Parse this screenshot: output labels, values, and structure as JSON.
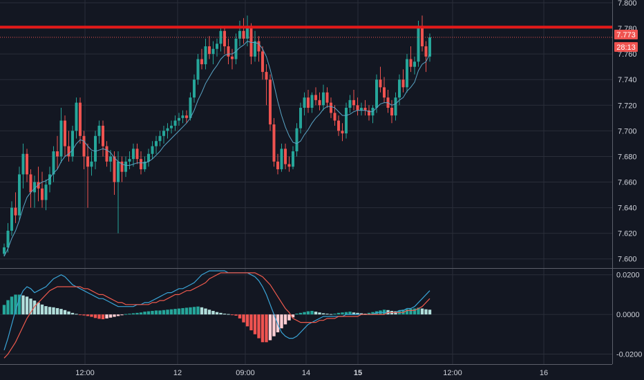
{
  "colors": {
    "background": "#131722",
    "grid": "#2a2e39",
    "axis_text": "#d1d4dc",
    "up": "#26a69a",
    "down": "#ef5350",
    "ma_line": "#5aa6c7",
    "resistance": "#e31919",
    "price_tag": "#ef5350",
    "macd_line": "#3aa5d8",
    "signal_line": "#ef5a4d",
    "hist_up_strong": "#26a69a",
    "hist_up_weak": "#b2dfdb",
    "hist_down_strong": "#ef5350",
    "hist_down_weak": "#ffcdd2"
  },
  "price_tags": {
    "last_price": "7.773",
    "countdown": "28:13"
  },
  "chart_data": [
    {
      "type": "candlestick",
      "y_ticks": [
        "7.800",
        "7.780",
        "7.760",
        "7.740",
        "7.720",
        "7.700",
        "7.680",
        "7.660",
        "7.640",
        "7.620",
        "7.600"
      ],
      "ylim": [
        7.595,
        7.8
      ],
      "x_ticks": [
        "12:00",
        "12",
        "09:00",
        "14",
        "15",
        "12:00",
        "16"
      ],
      "horizontal_line": 7.781,
      "last_price": 7.773,
      "candles": [
        [
          7.604,
          7.612,
          7.602,
          7.609
        ],
        [
          7.609,
          7.628,
          7.605,
          7.622
        ],
        [
          7.622,
          7.645,
          7.618,
          7.64
        ],
        [
          7.64,
          7.652,
          7.628,
          7.634
        ],
        [
          7.634,
          7.672,
          7.63,
          7.666
        ],
        [
          7.666,
          7.69,
          7.655,
          7.682
        ],
        [
          7.682,
          7.686,
          7.66,
          7.666
        ],
        [
          7.666,
          7.67,
          7.64,
          7.652
        ],
        [
          7.652,
          7.665,
          7.64,
          7.66
        ],
        [
          7.66,
          7.672,
          7.645,
          7.655
        ],
        [
          7.655,
          7.668,
          7.64,
          7.646
        ],
        [
          7.646,
          7.662,
          7.638,
          7.658
        ],
        [
          7.658,
          7.672,
          7.652,
          7.666
        ],
        [
          7.666,
          7.688,
          7.66,
          7.684
        ],
        [
          7.684,
          7.696,
          7.67,
          7.68
        ],
        [
          7.68,
          7.718,
          7.675,
          7.708
        ],
        [
          7.708,
          7.712,
          7.68,
          7.688
        ],
        [
          7.688,
          7.7,
          7.676,
          7.68
        ],
        [
          7.68,
          7.704,
          7.676,
          7.7
        ],
        [
          7.7,
          7.726,
          7.694,
          7.722
        ],
        [
          7.722,
          7.726,
          7.69,
          7.696
        ],
        [
          7.696,
          7.7,
          7.67,
          7.68
        ],
        [
          7.68,
          7.69,
          7.64,
          7.672
        ],
        [
          7.672,
          7.684,
          7.665,
          7.676
        ],
        [
          7.676,
          7.7,
          7.67,
          7.696
        ],
        [
          7.696,
          7.708,
          7.69,
          7.704
        ],
        [
          7.704,
          7.708,
          7.68,
          7.688
        ],
        [
          7.688,
          7.692,
          7.672,
          7.676
        ],
        [
          7.676,
          7.685,
          7.668,
          7.68
        ],
        [
          7.68,
          7.684,
          7.65,
          7.66
        ],
        [
          7.66,
          7.684,
          7.62,
          7.676
        ],
        [
          7.676,
          7.68,
          7.66,
          7.668
        ],
        [
          7.668,
          7.68,
          7.664,
          7.676
        ],
        [
          7.676,
          7.684,
          7.67,
          7.678
        ],
        [
          7.678,
          7.69,
          7.672,
          7.686
        ],
        [
          7.686,
          7.69,
          7.674,
          7.678
        ],
        [
          7.678,
          7.684,
          7.666,
          7.67
        ],
        [
          7.67,
          7.68,
          7.668,
          7.676
        ],
        [
          7.676,
          7.686,
          7.672,
          7.682
        ],
        [
          7.682,
          7.692,
          7.678,
          7.688
        ],
        [
          7.688,
          7.696,
          7.682,
          7.692
        ],
        [
          7.692,
          7.7,
          7.688,
          7.696
        ],
        [
          7.696,
          7.704,
          7.69,
          7.7
        ],
        [
          7.7,
          7.706,
          7.694,
          7.702
        ],
        [
          7.702,
          7.708,
          7.698,
          7.704
        ],
        [
          7.704,
          7.712,
          7.7,
          7.708
        ],
        [
          7.708,
          7.714,
          7.704,
          7.71
        ],
        [
          7.71,
          7.716,
          7.706,
          7.712
        ],
        [
          7.712,
          7.716,
          7.706,
          7.71
        ],
        [
          7.71,
          7.73,
          7.708,
          7.726
        ],
        [
          7.726,
          7.744,
          7.722,
          7.74
        ],
        [
          7.74,
          7.76,
          7.736,
          7.756
        ],
        [
          7.756,
          7.764,
          7.748,
          7.752
        ],
        [
          7.752,
          7.772,
          7.748,
          7.766
        ],
        [
          7.766,
          7.774,
          7.756,
          7.76
        ],
        [
          7.76,
          7.77,
          7.752,
          7.764
        ],
        [
          7.764,
          7.772,
          7.758,
          7.768
        ],
        [
          7.768,
          7.782,
          7.762,
          7.778
        ],
        [
          7.778,
          7.782,
          7.76,
          7.766
        ],
        [
          7.766,
          7.772,
          7.752,
          7.758
        ],
        [
          7.758,
          7.764,
          7.748,
          7.756
        ],
        [
          7.756,
          7.776,
          7.752,
          7.772
        ],
        [
          7.772,
          7.786,
          7.766,
          7.778
        ],
        [
          7.778,
          7.788,
          7.768,
          7.772
        ],
        [
          7.772,
          7.79,
          7.766,
          7.782
        ],
        [
          7.782,
          7.784,
          7.752,
          7.758
        ],
        [
          7.758,
          7.778,
          7.754,
          7.77
        ],
        [
          7.77,
          7.774,
          7.754,
          7.762
        ],
        [
          7.762,
          7.766,
          7.74,
          7.746
        ],
        [
          7.746,
          7.752,
          7.72,
          7.74
        ],
        [
          7.74,
          7.744,
          7.7,
          7.705
        ],
        [
          7.705,
          7.71,
          7.672,
          7.676
        ],
        [
          7.676,
          7.682,
          7.666,
          7.67
        ],
        [
          7.67,
          7.69,
          7.668,
          7.686
        ],
        [
          7.686,
          7.69,
          7.67,
          7.674
        ],
        [
          7.674,
          7.68,
          7.668,
          7.672
        ],
        [
          7.672,
          7.688,
          7.67,
          7.684
        ],
        [
          7.684,
          7.706,
          7.68,
          7.702
        ],
        [
          7.702,
          7.722,
          7.698,
          7.718
        ],
        [
          7.718,
          7.73,
          7.712,
          7.726
        ],
        [
          7.726,
          7.732,
          7.714,
          7.718
        ],
        [
          7.718,
          7.73,
          7.714,
          7.728
        ],
        [
          7.728,
          7.734,
          7.72,
          7.724
        ],
        [
          7.724,
          7.73,
          7.716,
          7.72
        ],
        [
          7.72,
          7.736,
          7.716,
          7.73
        ],
        [
          7.73,
          7.734,
          7.718,
          7.722
        ],
        [
          7.722,
          7.726,
          7.71,
          7.714
        ],
        [
          7.714,
          7.72,
          7.704,
          7.708
        ],
        [
          7.708,
          7.712,
          7.696,
          7.7
        ],
        [
          7.7,
          7.706,
          7.692,
          7.698
        ],
        [
          7.698,
          7.722,
          7.694,
          7.718
        ],
        [
          7.718,
          7.728,
          7.714,
          7.724
        ],
        [
          7.724,
          7.732,
          7.716,
          7.72
        ],
        [
          7.72,
          7.726,
          7.712,
          7.716
        ],
        [
          7.716,
          7.722,
          7.712,
          7.718
        ],
        [
          7.718,
          7.724,
          7.712,
          7.716
        ],
        [
          7.716,
          7.72,
          7.708,
          7.712
        ],
        [
          7.712,
          7.72,
          7.706,
          7.718
        ],
        [
          7.718,
          7.744,
          7.714,
          7.74
        ],
        [
          7.74,
          7.75,
          7.73,
          7.734
        ],
        [
          7.734,
          7.742,
          7.722,
          7.726
        ],
        [
          7.726,
          7.732,
          7.714,
          7.718
        ],
        [
          7.718,
          7.724,
          7.706,
          7.712
        ],
        [
          7.712,
          7.73,
          7.708,
          7.726
        ],
        [
          7.726,
          7.744,
          7.72,
          7.74
        ],
        [
          7.74,
          7.748,
          7.73,
          7.734
        ],
        [
          7.734,
          7.76,
          7.73,
          7.756
        ],
        [
          7.756,
          7.766,
          7.746,
          7.75
        ],
        [
          7.75,
          7.758,
          7.744,
          7.754
        ],
        [
          7.754,
          7.786,
          7.75,
          7.782
        ],
        [
          7.782,
          7.79,
          7.762,
          7.766
        ],
        [
          7.766,
          7.77,
          7.746,
          7.758
        ],
        [
          7.758,
          7.776,
          7.754,
          7.773
        ]
      ],
      "ma": [
        7.602,
        7.608,
        7.616,
        7.622,
        7.63,
        7.64,
        7.648,
        7.652,
        7.655,
        7.658,
        7.66,
        7.661,
        7.663,
        7.667,
        7.67,
        7.676,
        7.68,
        7.682,
        7.685,
        7.69,
        7.693,
        7.692,
        7.688,
        7.685,
        7.684,
        7.685,
        7.686,
        7.685,
        7.683,
        7.679,
        7.676,
        7.674,
        7.673,
        7.673,
        7.674,
        7.675,
        7.675,
        7.675,
        7.676,
        7.678,
        7.681,
        7.684,
        7.688,
        7.691,
        7.694,
        7.697,
        7.7,
        7.703,
        7.706,
        7.71,
        7.716,
        7.724,
        7.73,
        7.737,
        7.742,
        7.747,
        7.751,
        7.756,
        7.759,
        7.76,
        7.76,
        7.762,
        7.765,
        7.767,
        7.77,
        7.769,
        7.769,
        7.768,
        7.764,
        7.758,
        7.748,
        7.736,
        7.723,
        7.712,
        7.703,
        7.696,
        7.691,
        7.69,
        7.692,
        7.697,
        7.701,
        7.706,
        7.71,
        7.713,
        7.717,
        7.719,
        7.719,
        7.718,
        7.715,
        7.712,
        7.712,
        7.713,
        7.715,
        7.716,
        7.716,
        7.716,
        7.715,
        7.715,
        7.718,
        7.721,
        7.722,
        7.722,
        7.72,
        7.721,
        7.724,
        7.726,
        7.731,
        7.734,
        7.738,
        7.747,
        7.752,
        7.754,
        7.76
      ]
    },
    {
      "type": "macd",
      "y_ticks": [
        "0.0200",
        "0.0000",
        "-0.0200"
      ],
      "ylim": [
        -0.024,
        0.022
      ],
      "macd": [
        -0.018,
        -0.012,
        -0.005,
        0.002,
        0.008,
        0.012,
        0.014,
        0.013,
        0.011,
        0.012,
        0.013,
        0.014,
        0.016,
        0.018,
        0.019,
        0.02,
        0.019,
        0.017,
        0.015,
        0.014,
        0.013,
        0.012,
        0.011,
        0.01,
        0.009,
        0.008,
        0.008,
        0.007,
        0.006,
        0.005,
        0.004,
        0.004,
        0.004,
        0.004,
        0.004,
        0.005,
        0.005,
        0.006,
        0.006,
        0.007,
        0.008,
        0.009,
        0.01,
        0.011,
        0.011,
        0.012,
        0.013,
        0.013,
        0.014,
        0.015,
        0.016,
        0.018,
        0.02,
        0.021,
        0.022,
        0.022,
        0.022,
        0.022,
        0.022,
        0.021,
        0.021,
        0.021,
        0.021,
        0.021,
        0.021,
        0.02,
        0.019,
        0.017,
        0.014,
        0.01,
        0.005,
        0.0,
        -0.005,
        -0.009,
        -0.011,
        -0.012,
        -0.012,
        -0.011,
        -0.009,
        -0.007,
        -0.005,
        -0.004,
        -0.003,
        -0.002,
        -0.001,
        -0.001,
        -0.001,
        -0.001,
        -0.001,
        -0.001,
        0.0,
        0.0,
        0.0,
        0.0,
        0.0,
        0.0,
        0.0,
        0.0,
        0.001,
        0.001,
        0.001,
        0.001,
        0.001,
        0.001,
        0.002,
        0.002,
        0.003,
        0.003,
        0.004,
        0.006,
        0.008,
        0.01,
        0.012
      ],
      "signal": [
        -0.022,
        -0.02,
        -0.017,
        -0.014,
        -0.01,
        -0.006,
        -0.002,
        0.001,
        0.004,
        0.006,
        0.008,
        0.01,
        0.012,
        0.013,
        0.014,
        0.014,
        0.014,
        0.014,
        0.014,
        0.014,
        0.014,
        0.013,
        0.013,
        0.012,
        0.011,
        0.01,
        0.01,
        0.009,
        0.008,
        0.007,
        0.006,
        0.006,
        0.005,
        0.005,
        0.005,
        0.005,
        0.005,
        0.005,
        0.005,
        0.006,
        0.006,
        0.007,
        0.007,
        0.008,
        0.009,
        0.01,
        0.01,
        0.011,
        0.012,
        0.012,
        0.013,
        0.014,
        0.015,
        0.016,
        0.018,
        0.019,
        0.02,
        0.021,
        0.021,
        0.021,
        0.021,
        0.021,
        0.021,
        0.021,
        0.021,
        0.021,
        0.021,
        0.02,
        0.019,
        0.017,
        0.015,
        0.012,
        0.009,
        0.006,
        0.003,
        0.001,
        -0.002,
        -0.003,
        -0.004,
        -0.004,
        -0.004,
        -0.004,
        -0.004,
        -0.003,
        -0.003,
        -0.002,
        -0.002,
        -0.002,
        -0.001,
        -0.001,
        -0.001,
        -0.001,
        -0.001,
        -0.001,
        0.0,
        0.0,
        0.0,
        0.0,
        0.0,
        0.0,
        0.0,
        0.001,
        0.001,
        0.001,
        0.001,
        0.001,
        0.002,
        0.002,
        0.002,
        0.003,
        0.004,
        0.006,
        0.008
      ],
      "histogram": [
        0.0048,
        0.0072,
        0.009,
        0.01,
        0.01,
        0.0096,
        0.009,
        0.008,
        0.007,
        0.006,
        0.005,
        0.0042,
        0.0038,
        0.0036,
        0.0032,
        0.0028,
        0.0022,
        0.0015,
        0.0008,
        0.0003,
        -0.0002,
        -0.0005,
        -0.0008,
        -0.0012,
        -0.0018,
        -0.0022,
        -0.0024,
        -0.002,
        -0.0016,
        -0.0012,
        -0.0008,
        -0.0004,
        0.0002,
        0.0004,
        0.0006,
        0.0008,
        0.001,
        0.0014,
        0.0016,
        0.0018,
        0.002,
        0.002,
        0.0022,
        0.0024,
        0.0026,
        0.0028,
        0.003,
        0.0032,
        0.0034,
        0.0036,
        0.0038,
        0.004,
        0.0036,
        0.003,
        0.0024,
        0.0018,
        0.0012,
        0.0008,
        0.0004,
        0.0002,
        -0.0002,
        -0.0006,
        -0.002,
        -0.004,
        -0.006,
        -0.008,
        -0.01,
        -0.012,
        -0.014,
        -0.014,
        -0.013,
        -0.011,
        -0.009,
        -0.007,
        -0.005,
        -0.003,
        -0.0015,
        0.0004,
        0.0008,
        0.0012,
        0.0016,
        0.0018,
        0.0014,
        0.001,
        0.0006,
        0.0004,
        0.0002,
        0.0004,
        0.0008,
        0.001,
        0.0012,
        0.0014,
        0.001,
        0.0008,
        0.0006,
        0.0004,
        0.0008,
        0.0012,
        0.0016,
        0.002,
        0.0024,
        0.0022,
        0.0018,
        0.0016,
        0.002,
        0.0024,
        0.0026,
        0.0028,
        0.003,
        0.0034,
        0.003,
        0.0026,
        0.0024
      ]
    }
  ]
}
